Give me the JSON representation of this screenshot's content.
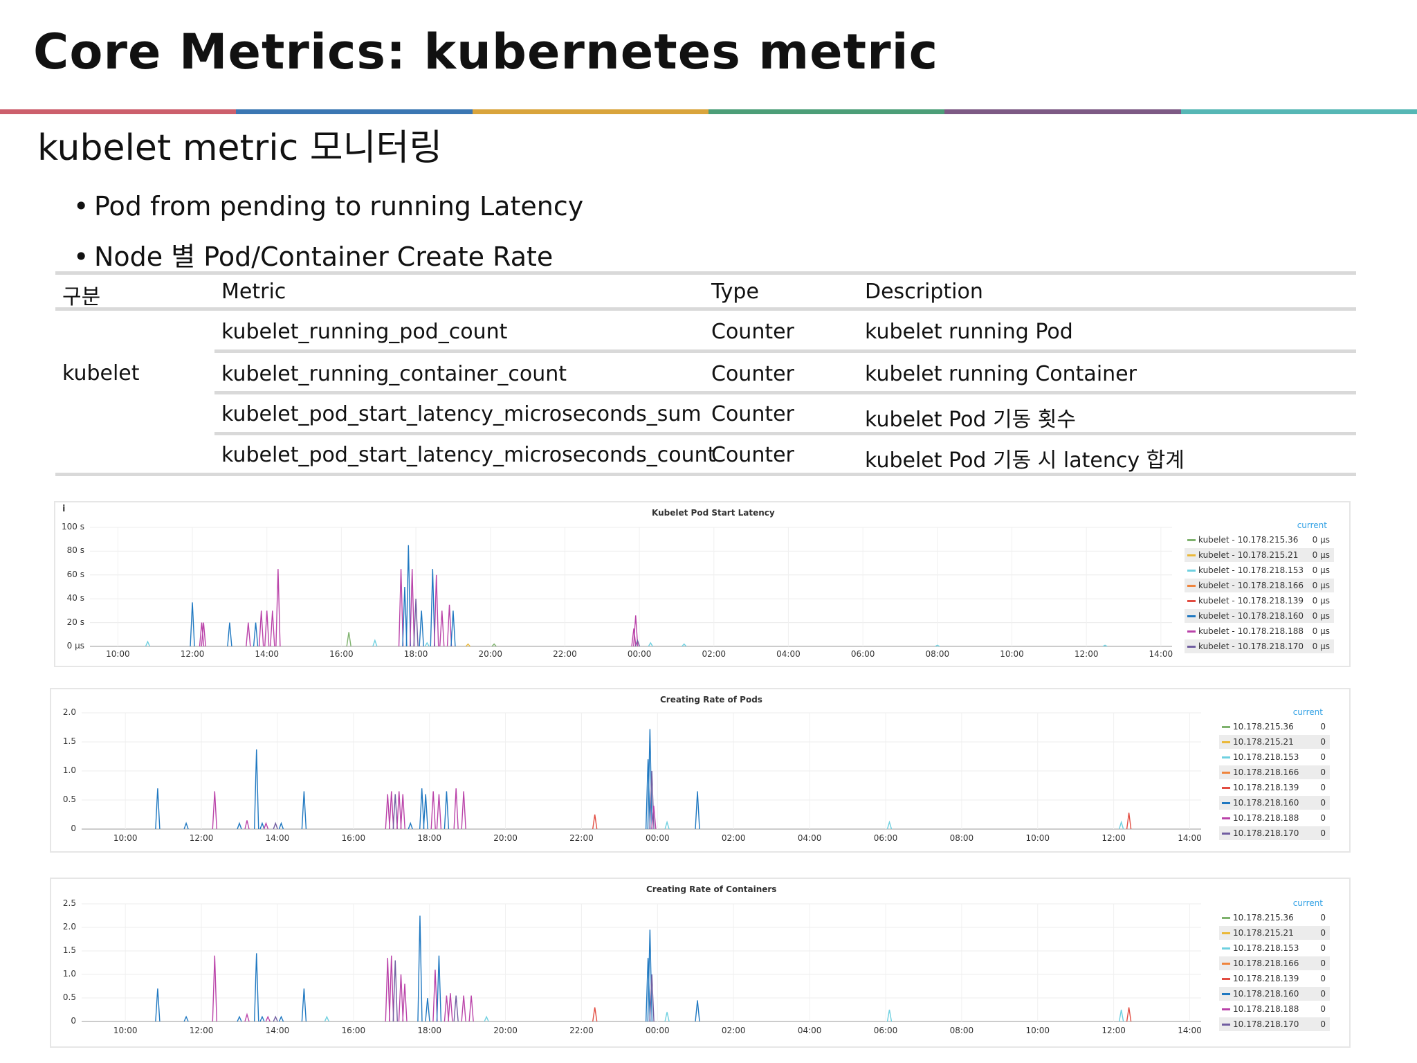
{
  "slide": {
    "title": "Core Metrics: kubernetes metric",
    "subtitle": "kubelet metric 모니터링",
    "bullets": [
      "Pod from pending to running Latency",
      "Node 별 Pod/Container Create Rate"
    ],
    "accent_colors": [
      "#cc5f6c",
      "#3b77b3",
      "#d9a43c",
      "#4c9e78",
      "#7d5a85",
      "#56b7b5"
    ]
  },
  "table": {
    "headers": [
      "구분",
      "Metric",
      "Type",
      "Description"
    ],
    "group_label": "kubelet",
    "rows": [
      {
        "metric": "kubelet_running_pod_count",
        "type": "Counter",
        "description": "kubelet running Pod"
      },
      {
        "metric": "kubelet_running_container_count",
        "type": "Counter",
        "description": "kubelet running Container"
      },
      {
        "metric": "kubelet_pod_start_latency_microseconds_sum",
        "type": "Counter",
        "description": "kubelet Pod 기동 횟수"
      },
      {
        "metric": "kubelet_pod_start_latency_microseconds_count",
        "type": "Counter",
        "description": "kubelet Pod 기동 시 latency 합계"
      }
    ]
  },
  "panels": [
    {
      "info_icon": "i",
      "legend_header": "current",
      "legend": [
        {
          "label": "kubelet - 10.178.215.36",
          "value": "0 µs"
        },
        {
          "label": "kubelet - 10.178.215.21",
          "value": "0 µs"
        },
        {
          "label": "kubelet - 10.178.218.153",
          "value": "0 µs"
        },
        {
          "label": "kubelet - 10.178.218.166",
          "value": "0 µs"
        },
        {
          "label": "kubelet - 10.178.218.139",
          "value": "0 µs"
        },
        {
          "label": "kubelet - 10.178.218.160",
          "value": "0 µs"
        },
        {
          "label": "kubelet - 10.178.218.188",
          "value": "0 µs"
        },
        {
          "label": "kubelet - 10.178.218.170",
          "value": "0 µs"
        }
      ]
    },
    {
      "legend_header": "current",
      "legend": [
        {
          "label": "10.178.215.36",
          "value": "0"
        },
        {
          "label": "10.178.215.21",
          "value": "0"
        },
        {
          "label": "10.178.218.153",
          "value": "0"
        },
        {
          "label": "10.178.218.166",
          "value": "0"
        },
        {
          "label": "10.178.218.139",
          "value": "0"
        },
        {
          "label": "10.178.218.160",
          "value": "0"
        },
        {
          "label": "10.178.218.188",
          "value": "0"
        },
        {
          "label": "10.178.218.170",
          "value": "0"
        }
      ]
    },
    {
      "legend_header": "current",
      "legend": [
        {
          "label": "10.178.215.36",
          "value": "0"
        },
        {
          "label": "10.178.215.21",
          "value": "0"
        },
        {
          "label": "10.178.218.153",
          "value": "0"
        },
        {
          "label": "10.178.218.166",
          "value": "0"
        },
        {
          "label": "10.178.218.139",
          "value": "0"
        },
        {
          "label": "10.178.218.160",
          "value": "0"
        },
        {
          "label": "10.178.218.188",
          "value": "0"
        },
        {
          "label": "10.178.218.170",
          "value": "0"
        }
      ]
    }
  ],
  "series_colors": [
    "#7eb26d",
    "#eab839",
    "#6ed0e0",
    "#ef843c",
    "#e24d42",
    "#1f78c1",
    "#ba43a9",
    "#705da0"
  ],
  "chart_data": [
    {
      "type": "line",
      "title": "Kubelet Pod Start Latency",
      "y_ticks": [
        "100 s",
        "80 s",
        "60 s",
        "40 s",
        "20 s",
        "0 µs"
      ],
      "ylim": [
        0,
        100
      ],
      "x_ticks": [
        "10:00",
        "12:00",
        "14:00",
        "16:00",
        "18:00",
        "20:00",
        "22:00",
        "00:00",
        "02:00",
        "04:00",
        "06:00",
        "08:00",
        "10:00",
        "12:00",
        "14:00"
      ],
      "xlim": [
        9.25,
        38.3
      ],
      "grid": true,
      "legend_position": "right",
      "spikes": [
        [
          10.8,
          4,
          2
        ],
        [
          12.0,
          37,
          5
        ],
        [
          12.25,
          20,
          6
        ],
        [
          12.3,
          20,
          6
        ],
        [
          13.0,
          20,
          5
        ],
        [
          13.5,
          20,
          6
        ],
        [
          13.7,
          20,
          5
        ],
        [
          13.85,
          30,
          6
        ],
        [
          14.0,
          30,
          6
        ],
        [
          14.15,
          30,
          6
        ],
        [
          14.3,
          65,
          6
        ],
        [
          16.2,
          12,
          0
        ],
        [
          16.9,
          5,
          2
        ],
        [
          17.6,
          65,
          6
        ],
        [
          17.7,
          50,
          5
        ],
        [
          17.8,
          85,
          5
        ],
        [
          17.9,
          65,
          6
        ],
        [
          18.0,
          40,
          7
        ],
        [
          18.15,
          30,
          5
        ],
        [
          18.45,
          65,
          5
        ],
        [
          18.55,
          60,
          6
        ],
        [
          18.7,
          30,
          6
        ],
        [
          18.9,
          35,
          6
        ],
        [
          19.0,
          30,
          5
        ],
        [
          18.3,
          3,
          2
        ],
        [
          19.4,
          2,
          1
        ],
        [
          20.1,
          2,
          0
        ],
        [
          23.85,
          15,
          6
        ],
        [
          23.9,
          26,
          6
        ],
        [
          23.95,
          5,
          7
        ],
        [
          24.3,
          3,
          2
        ],
        [
          25.2,
          2,
          2
        ],
        [
          32.0,
          1,
          2
        ],
        [
          36.5,
          1,
          2
        ]
      ]
    },
    {
      "type": "line",
      "title": "Creating Rate of Pods",
      "y_ticks": [
        "2.0",
        "1.5",
        "1.0",
        "0.5",
        "0"
      ],
      "ylim": [
        0,
        2
      ],
      "x_ticks": [
        "10:00",
        "12:00",
        "14:00",
        "16:00",
        "18:00",
        "20:00",
        "22:00",
        "00:00",
        "02:00",
        "04:00",
        "06:00",
        "08:00",
        "10:00",
        "12:00",
        "14:00"
      ],
      "xlim": [
        8.85,
        38.3
      ],
      "grid": true,
      "legend_position": "right",
      "spikes": [
        [
          10.85,
          0.7,
          5
        ],
        [
          11.6,
          0.1,
          5
        ],
        [
          12.35,
          0.65,
          6
        ],
        [
          13.0,
          0.1,
          5
        ],
        [
          13.2,
          0.15,
          6
        ],
        [
          13.45,
          1.37,
          5
        ],
        [
          13.6,
          0.1,
          5
        ],
        [
          13.7,
          0.1,
          6
        ],
        [
          13.95,
          0.1,
          7
        ],
        [
          14.1,
          0.1,
          5
        ],
        [
          14.7,
          0.65,
          5
        ],
        [
          16.9,
          0.6,
          6
        ],
        [
          17.0,
          0.65,
          6
        ],
        [
          17.1,
          0.6,
          7
        ],
        [
          17.2,
          0.65,
          6
        ],
        [
          17.3,
          0.6,
          6
        ],
        [
          17.8,
          0.7,
          5
        ],
        [
          17.9,
          0.6,
          5
        ],
        [
          18.1,
          0.65,
          6
        ],
        [
          18.25,
          0.6,
          6
        ],
        [
          18.45,
          0.65,
          5
        ],
        [
          18.7,
          0.7,
          6
        ],
        [
          18.9,
          0.65,
          6
        ],
        [
          17.5,
          0.1,
          5
        ],
        [
          22.35,
          0.25,
          4
        ],
        [
          23.75,
          1.2,
          5
        ],
        [
          23.8,
          1.72,
          5
        ],
        [
          23.85,
          1.0,
          7
        ],
        [
          23.9,
          0.4,
          6
        ],
        [
          24.25,
          0.12,
          2
        ],
        [
          25.05,
          0.65,
          5
        ],
        [
          30.1,
          0.12,
          2
        ],
        [
          36.2,
          0.12,
          2
        ],
        [
          36.4,
          0.28,
          4
        ]
      ]
    },
    {
      "type": "line",
      "title": "Creating Rate of Containers",
      "y_ticks": [
        "2.5",
        "2.0",
        "1.5",
        "1.0",
        "0.5",
        "0"
      ],
      "ylim": [
        0,
        2.5
      ],
      "x_ticks": [
        "10:00",
        "12:00",
        "14:00",
        "16:00",
        "18:00",
        "20:00",
        "22:00",
        "00:00",
        "02:00",
        "04:00",
        "06:00",
        "08:00",
        "10:00",
        "12:00",
        "14:00"
      ],
      "xlim": [
        8.85,
        38.3
      ],
      "grid": true,
      "legend_position": "right",
      "spikes": [
        [
          10.85,
          0.7,
          5
        ],
        [
          11.6,
          0.1,
          5
        ],
        [
          12.35,
          1.4,
          6
        ],
        [
          13.0,
          0.1,
          5
        ],
        [
          13.2,
          0.15,
          6
        ],
        [
          13.45,
          1.45,
          5
        ],
        [
          13.6,
          0.1,
          5
        ],
        [
          13.75,
          0.1,
          6
        ],
        [
          13.95,
          0.1,
          7
        ],
        [
          14.1,
          0.1,
          5
        ],
        [
          14.7,
          0.7,
          5
        ],
        [
          15.3,
          0.1,
          2
        ],
        [
          16.9,
          1.35,
          6
        ],
        [
          17.0,
          1.4,
          6
        ],
        [
          17.1,
          1.3,
          7
        ],
        [
          17.25,
          1.0,
          6
        ],
        [
          17.35,
          0.8,
          6
        ],
        [
          17.75,
          2.25,
          5
        ],
        [
          17.95,
          0.5,
          5
        ],
        [
          18.15,
          1.1,
          6
        ],
        [
          18.25,
          1.4,
          5
        ],
        [
          18.45,
          0.55,
          6
        ],
        [
          18.55,
          0.6,
          6
        ],
        [
          18.7,
          0.55,
          7
        ],
        [
          18.9,
          0.55,
          6
        ],
        [
          19.1,
          0.55,
          6
        ],
        [
          19.5,
          0.1,
          2
        ],
        [
          22.35,
          0.3,
          4
        ],
        [
          23.75,
          1.35,
          5
        ],
        [
          23.8,
          1.95,
          5
        ],
        [
          23.85,
          1.0,
          7
        ],
        [
          24.25,
          0.2,
          2
        ],
        [
          25.05,
          0.45,
          5
        ],
        [
          30.1,
          0.25,
          2
        ],
        [
          36.2,
          0.25,
          2
        ],
        [
          36.4,
          0.3,
          4
        ]
      ]
    }
  ]
}
